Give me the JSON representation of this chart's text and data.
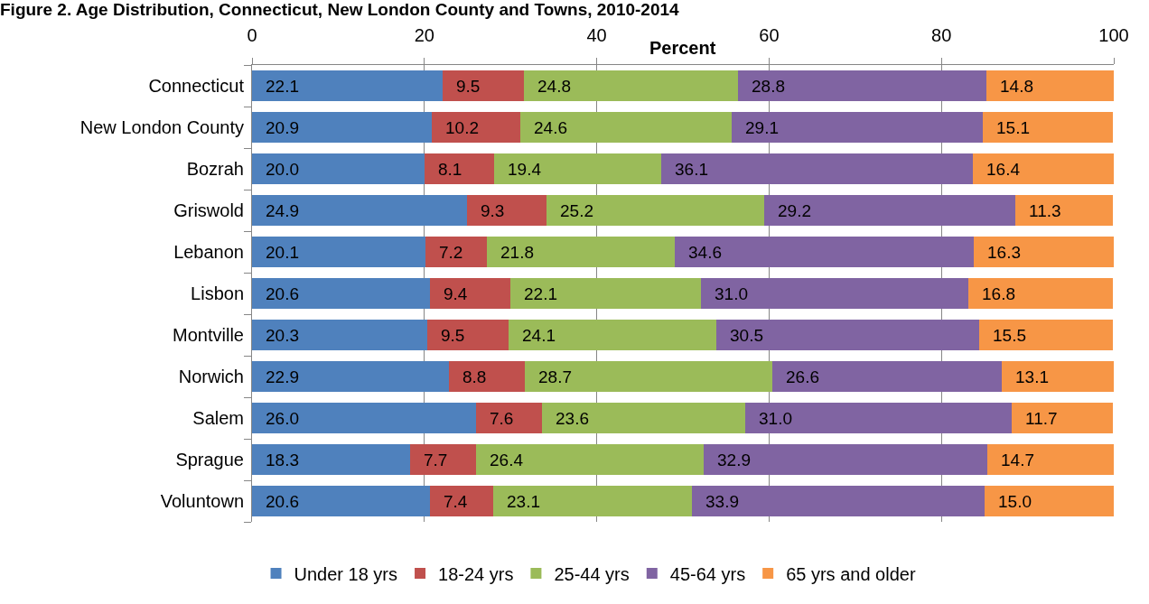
{
  "chart_data": {
    "type": "bar",
    "orientation": "horizontal",
    "stacked": true,
    "title": "Figure 2. Age Distribution, Connecticut, New London County and Towns, 2010-2014",
    "xlabel": "Percent",
    "categories": [
      "Connecticut",
      "New London County",
      "Bozrah",
      "Griswold",
      "Lebanon",
      "Lisbon",
      "Montville",
      "Norwich",
      "Salem",
      "Sprague",
      "Voluntown"
    ],
    "series": [
      {
        "name": "Under 18 yrs",
        "color": "#4f81bd",
        "values": [
          22.1,
          20.9,
          20.0,
          24.9,
          20.1,
          20.6,
          20.3,
          22.9,
          26.0,
          18.3,
          20.6
        ],
        "value_labels": [
          "22.1",
          "20.9",
          "20.0",
          "24.9",
          "20.1",
          "20.6",
          "20.3",
          "22.9",
          "26.0",
          "18.3",
          "20.6"
        ]
      },
      {
        "name": "18-24 yrs",
        "color": "#c0504d",
        "values": [
          9.5,
          10.2,
          8.1,
          9.3,
          7.2,
          9.4,
          9.5,
          8.8,
          7.6,
          7.7,
          7.4
        ],
        "value_labels": [
          "9.5",
          "10.2",
          "8.1",
          "9.3",
          "7.2",
          "9.4",
          "9.5",
          "8.8",
          "7.6",
          "7.7",
          "7.4"
        ]
      },
      {
        "name": "25-44 yrs",
        "color": "#9bbb59",
        "values": [
          24.8,
          24.6,
          19.4,
          25.2,
          21.8,
          22.1,
          24.1,
          28.7,
          23.6,
          26.4,
          23.1
        ],
        "value_labels": [
          "24.8",
          "24.6",
          "19.4",
          "25.2",
          "21.8",
          "22.1",
          "24.1",
          "28.7",
          "23.6",
          "26.4",
          "23.1"
        ]
      },
      {
        "name": "45-64 yrs",
        "color": "#8064a2",
        "values": [
          28.8,
          29.1,
          36.1,
          29.2,
          34.6,
          31.0,
          30.5,
          26.6,
          31.0,
          32.9,
          33.9
        ],
        "value_labels": [
          "28.8",
          "29.1",
          "36.1",
          "29.2",
          "34.6",
          "31.0",
          "30.5",
          "26.6",
          "31.0",
          "32.9",
          "33.9"
        ]
      },
      {
        "name": "65 yrs and older",
        "color": "#f79646",
        "values": [
          14.8,
          15.1,
          16.4,
          11.3,
          16.3,
          16.8,
          15.5,
          13.1,
          11.7,
          14.7,
          15.0
        ],
        "value_labels": [
          "14.8",
          "15.1",
          "16.4",
          "11.3",
          "16.3",
          "16.8",
          "15.5",
          "13.1",
          "11.7",
          "14.7",
          "15.0"
        ]
      }
    ],
    "xlim": [
      0,
      100
    ],
    "xticks": [
      0,
      20,
      40,
      60,
      80,
      100
    ],
    "grid": "x",
    "legend": "bottom"
  }
}
